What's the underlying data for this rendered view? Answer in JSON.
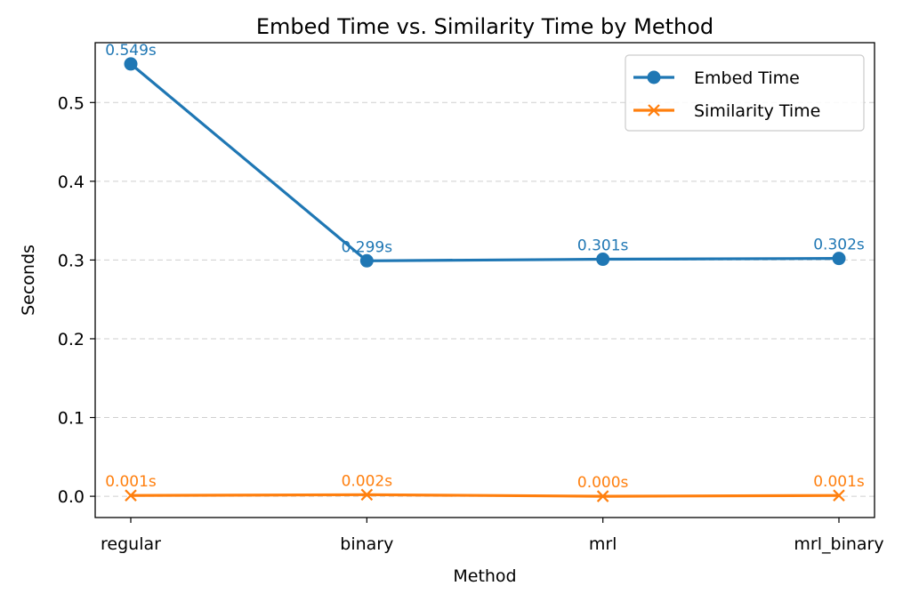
{
  "chart_data": {
    "type": "line",
    "title": "Embed Time vs. Similarity Time by Method",
    "xlabel": "Method",
    "ylabel": "Seconds",
    "categories": [
      "regular",
      "binary",
      "mrl",
      "mrl_binary"
    ],
    "ylim": [
      -0.027,
      0.576
    ],
    "yticks": [
      0.0,
      0.1,
      0.2,
      0.3,
      0.4,
      0.5
    ],
    "ytick_labels": [
      "0.0",
      "0.1",
      "0.2",
      "0.3",
      "0.4",
      "0.5"
    ],
    "grid": "y-dashed",
    "legend_position": "top-right",
    "series": [
      {
        "name": "Embed Time",
        "values": [
          0.549,
          0.299,
          0.301,
          0.302
        ],
        "labels": [
          "0.549s",
          "0.299s",
          "0.301s",
          "0.302s"
        ],
        "color": "#1f77b4",
        "marker": "circle"
      },
      {
        "name": "Similarity Time",
        "values": [
          0.001,
          0.002,
          0.0,
          0.001
        ],
        "labels": [
          "0.001s",
          "0.002s",
          "0.000s",
          "0.001s"
        ],
        "color": "#ff7f0e",
        "marker": "x"
      }
    ]
  }
}
